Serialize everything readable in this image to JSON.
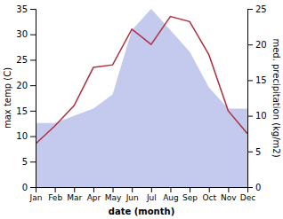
{
  "chart_data": {
    "type": "line",
    "categories": [
      "Jan",
      "Feb",
      "Mar",
      "Apr",
      "May",
      "Jun",
      "Jul",
      "Aug",
      "Sep",
      "Oct",
      "Nov",
      "Dec"
    ],
    "series": [
      {
        "type": "area",
        "axis": "y2",
        "color": "#b0b8e8",
        "values": [
          9.0,
          9.0,
          10.0,
          11.0,
          13.0,
          22.0,
          25.0,
          22.0,
          19.0,
          14.0,
          11.0,
          11.0
        ]
      },
      {
        "type": "line",
        "color": "#b03040",
        "values": [
          8.5,
          12.0,
          16.0,
          23.5,
          24.0,
          31.0,
          28.0,
          33.5,
          32.5,
          26.0,
          15.0,
          10.5
        ]
      }
    ],
    "xlabel": "date (month)",
    "ylabel": "max temp (C)",
    "y2label": "med. precipitation (kg/m2)",
    "ylim": [
      0,
      35
    ],
    "yticks": [
      0,
      5,
      10,
      15,
      20,
      25,
      30,
      35
    ],
    "y2lim": [
      0,
      25
    ],
    "y2ticks": [
      0,
      5,
      10,
      15,
      20,
      25
    ],
    "grid": false
  }
}
